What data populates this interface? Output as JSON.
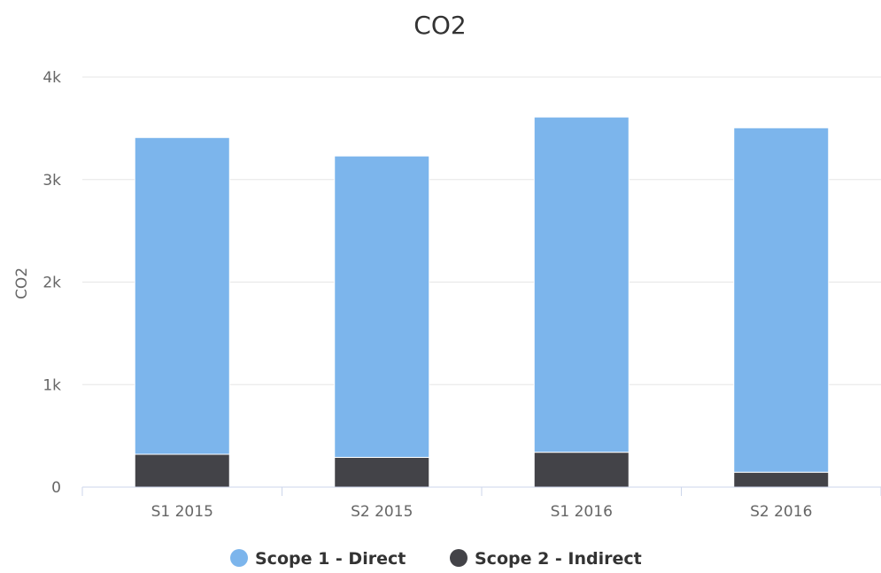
{
  "chart_data": {
    "type": "bar",
    "stacked": true,
    "title": "CO2",
    "xlabel": "",
    "ylabel": "CO2",
    "categories": [
      "S1 2015",
      "S2 2015",
      "S1 2016",
      "S2 2016"
    ],
    "series": [
      {
        "name": "Scope 2 - Indirect",
        "color": "#434348",
        "values": [
          320,
          290,
          340,
          145
        ]
      },
      {
        "name": "Scope 1 - Direct",
        "color": "#7cb5ec",
        "values": [
          3090,
          2940,
          3270,
          3360
        ]
      }
    ],
    "legend_order": [
      1,
      0
    ],
    "ylim": [
      0,
      4000
    ],
    "yticks": [
      0,
      1000,
      2000,
      3000,
      4000
    ],
    "ytick_labels": [
      "0",
      "1k",
      "2k",
      "3k",
      "4k"
    ],
    "grid": true,
    "legend_position": "bottom-center"
  }
}
